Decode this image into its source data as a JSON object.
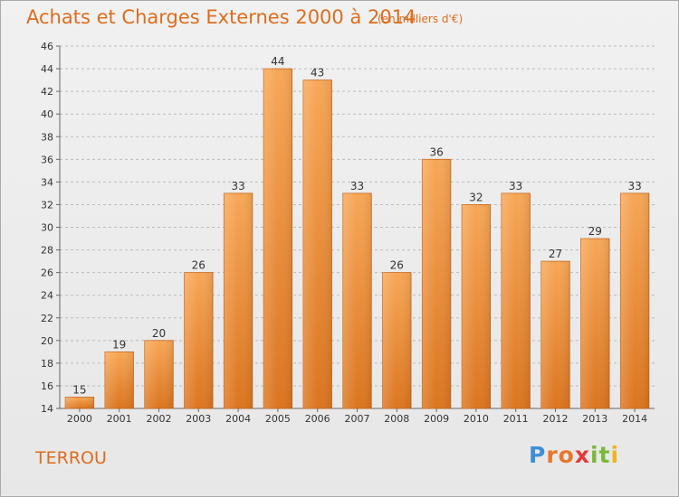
{
  "header": {
    "title": "Achats et Charges Externes 2000 à 2014",
    "subtitle": "(en milliers d'€)"
  },
  "footer": {
    "commune": "TERROU",
    "logo": [
      "P",
      "ro",
      "x",
      "it",
      "i"
    ]
  },
  "colors": {
    "accent": "#dd6d1d",
    "bar_top": "#f7a757",
    "bar_bottom": "#db751f",
    "grid": "#bcbcbc"
  },
  "chart_data": {
    "type": "bar",
    "title": "Achats et Charges Externes 2000 à 2014",
    "subtitle": "(en milliers d'€)",
    "xlabel": "",
    "ylabel": "",
    "categories": [
      "2000",
      "2001",
      "2002",
      "2003",
      "2004",
      "2005",
      "2006",
      "2007",
      "2008",
      "2009",
      "2010",
      "2011",
      "2012",
      "2013",
      "2014"
    ],
    "values": [
      15,
      19,
      20,
      26,
      33,
      44,
      43,
      33,
      26,
      36,
      32,
      33,
      27,
      29,
      33
    ],
    "ylim": [
      14,
      46
    ],
    "yticks": [
      14,
      16,
      18,
      20,
      22,
      24,
      26,
      28,
      30,
      32,
      34,
      36,
      38,
      40,
      42,
      44,
      46
    ],
    "grid": "horizontal dashed",
    "legend": "none"
  }
}
